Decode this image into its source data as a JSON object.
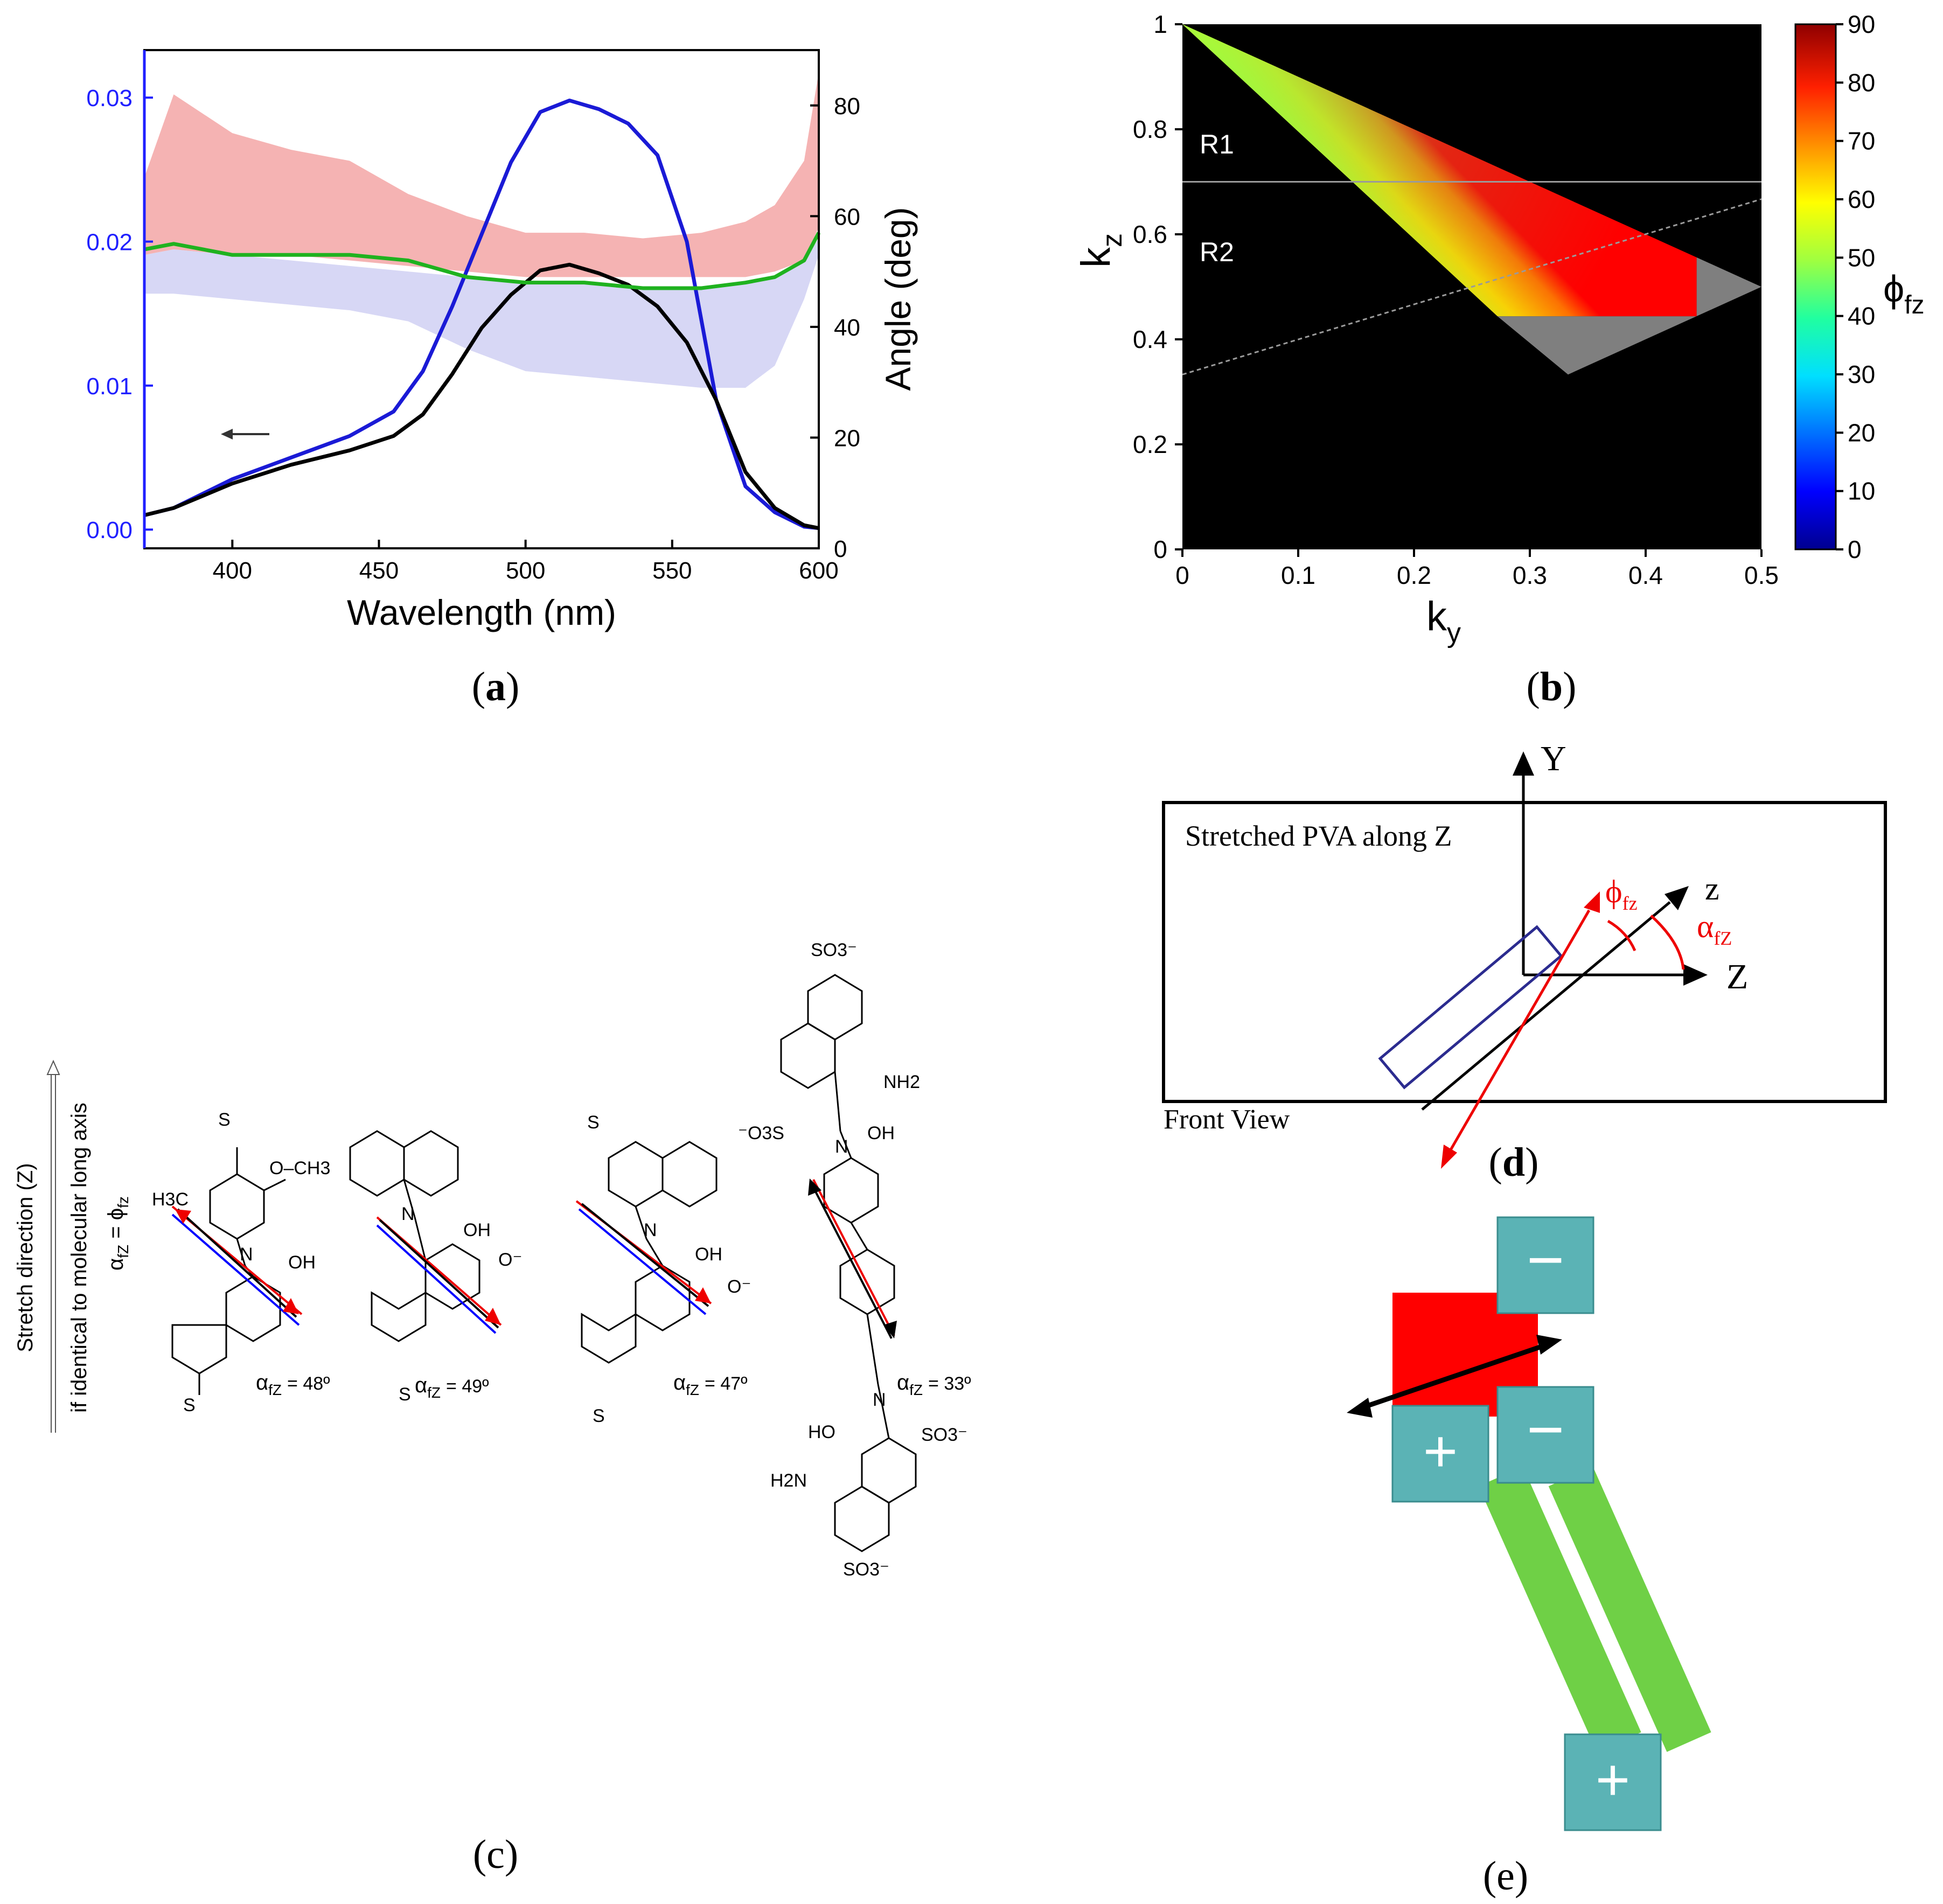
{
  "captions": {
    "a": "a",
    "b": "b",
    "c": "c",
    "d": "d",
    "e": "e"
  },
  "panel_a": {
    "xlabel": "Wavelength (nm)",
    "y2label": "Angle (deg)",
    "left_ticks": [
      "0.00",
      "0.01",
      "0.02",
      "0.03"
    ],
    "right_ticks": [
      "0",
      "20",
      "40",
      "60",
      "80"
    ],
    "x_ticks": [
      "400",
      "450",
      "500",
      "550",
      "600"
    ]
  },
  "panel_b": {
    "xlabel": "k",
    "xlabel_sub": "y",
    "ylabel": "k",
    "ylabel_sub": "z",
    "region1": "R1",
    "region2": "R2",
    "x_ticks": [
      "0",
      "0.1",
      "0.2",
      "0.3",
      "0.4",
      "0.5"
    ],
    "y_ticks": [
      "0",
      "0.2",
      "0.4",
      "0.6",
      "0.8",
      "1"
    ],
    "cbar_ticks": [
      "0",
      "10",
      "20",
      "30",
      "40",
      "50",
      "60",
      "70",
      "80",
      "90"
    ],
    "cbar_label": "ϕ",
    "cbar_label_sub": "fz"
  },
  "panel_c": {
    "axis_label": "Stretch direction (Z)",
    "axis_note": "if  identical to molecular long axis",
    "axis_eq": "α",
    "axis_eq_sub": "fZ",
    "axis_eq_rest": " = ϕ",
    "axis_eq_sub2": "fz",
    "angles": [
      "= 48º",
      "= 49º",
      "= 47º",
      "= 33º"
    ],
    "alpha": "α",
    "alpha_sub": "fZ",
    "labels": {
      "h3c": "H3C",
      "och3": "O–CH3",
      "oh": "OH",
      "n": "N",
      "so3": "SO3⁻",
      "o3s": "⁻O3S",
      "nh2": "NH2",
      "h2n": "H2N",
      "ho": "HO",
      "o": "O",
      "s": "S",
      "ominus": "O⁻",
      "minuso": "⁻O"
    }
  },
  "panel_d": {
    "box_text": "Stretched PVA along Z",
    "y_axis": "Y",
    "z_axis": "Z",
    "z_mol": "z",
    "phi": "ϕ",
    "phi_sub": "fz",
    "alpha": "α",
    "alpha_sub": "fZ",
    "footer": "Front View"
  },
  "panel_e": {
    "minus": "−",
    "plus": "+"
  },
  "chart_data": [
    {
      "type": "line",
      "title": "",
      "xlabel": "Wavelength (nm)",
      "ylabel": "",
      "y2label": "Angle (deg)",
      "xlim": [
        370,
        600
      ],
      "ylim": [
        -0.0013,
        0.0333
      ],
      "y2lim": [
        0,
        90
      ],
      "series": [
        {
          "name": "absorbance (blue)",
          "axis": "left",
          "color": "#1a1ad6",
          "x": [
            370,
            380,
            400,
            420,
            440,
            455,
            465,
            475,
            485,
            495,
            505,
            515,
            525,
            535,
            545,
            555,
            565,
            575,
            585,
            595,
            600
          ],
          "values": [
            0.001,
            0.0015,
            0.0035,
            0.005,
            0.0065,
            0.0082,
            0.011,
            0.0155,
            0.0205,
            0.0255,
            0.029,
            0.0298,
            0.0292,
            0.0282,
            0.026,
            0.02,
            0.009,
            0.003,
            0.0012,
            0.0002,
            0.0001
          ]
        },
        {
          "name": "absorbance (black)",
          "axis": "left",
          "color": "#000000",
          "x": [
            370,
            380,
            400,
            420,
            440,
            455,
            465,
            475,
            485,
            495,
            505,
            515,
            525,
            535,
            545,
            555,
            565,
            575,
            585,
            595,
            600
          ],
          "values": [
            0.001,
            0.0015,
            0.0032,
            0.0045,
            0.0055,
            0.0065,
            0.008,
            0.0108,
            0.014,
            0.0163,
            0.018,
            0.0184,
            0.0178,
            0.017,
            0.0155,
            0.013,
            0.009,
            0.004,
            0.0015,
            0.0003,
            0.0001
          ]
        },
        {
          "name": "angle (green)",
          "axis": "right",
          "color": "#1fb21f",
          "x": [
            370,
            380,
            400,
            420,
            440,
            460,
            480,
            500,
            520,
            540,
            560,
            575,
            585,
            595,
            600
          ],
          "values": [
            54,
            55,
            53,
            53,
            53,
            52,
            49,
            48,
            48,
            47,
            47,
            48,
            49,
            52,
            57
          ]
        },
        {
          "name": "angle band (red)",
          "axis": "right",
          "color": "#f29a9a",
          "x": [
            370,
            380,
            400,
            420,
            440,
            460,
            480,
            500,
            520,
            540,
            560,
            575,
            585,
            595,
            600
          ],
          "upper": [
            67,
            82,
            75,
            72,
            70,
            64,
            60,
            57,
            57,
            56,
            57,
            59,
            62,
            70,
            86
          ],
          "lower": [
            53,
            54,
            53,
            53,
            52,
            51,
            50,
            49,
            49,
            49,
            49,
            49,
            50,
            52,
            58
          ]
        },
        {
          "name": "angle band (blue)",
          "axis": "right",
          "color": "#c9c9f2",
          "x": [
            370,
            380,
            400,
            420,
            440,
            460,
            480,
            500,
            520,
            540,
            560,
            575,
            585,
            595,
            600
          ],
          "upper": [
            53,
            54,
            53,
            52,
            51,
            50,
            49,
            48,
            48,
            47,
            47,
            48,
            49,
            52,
            56
          ],
          "lower": [
            46,
            46,
            45,
            44,
            43,
            41,
            36,
            32,
            31,
            30,
            29,
            29,
            33,
            45,
            53
          ]
        }
      ]
    },
    {
      "type": "heatmap",
      "title": "",
      "xlabel": "ky",
      "ylabel": "kz",
      "xlim": [
        0,
        0.5
      ],
      "ylim": [
        0,
        1
      ],
      "colorbar": {
        "label": "ϕfz",
        "range": [
          0,
          90
        ]
      },
      "colored_region": [
        [
          0,
          1
        ],
        [
          0.444,
          0.556
        ],
        [
          0.444,
          0.444
        ],
        [
          0.272,
          0.444
        ]
      ],
      "grey_region": [
        [
          0.444,
          0.556
        ],
        [
          0.5,
          0.5
        ],
        [
          0.333,
          0.333
        ],
        [
          0.272,
          0.444
        ],
        [
          0.444,
          0.444
        ]
      ],
      "lines": [
        {
          "name": "R1/R2 boundary",
          "x": [
            0,
            0.5
          ],
          "y": [
            0.7,
            0.7
          ]
        },
        {
          "name": "dashed",
          "x": [
            0,
            0.5
          ],
          "y": [
            0.333,
            0.667
          ]
        }
      ]
    }
  ]
}
